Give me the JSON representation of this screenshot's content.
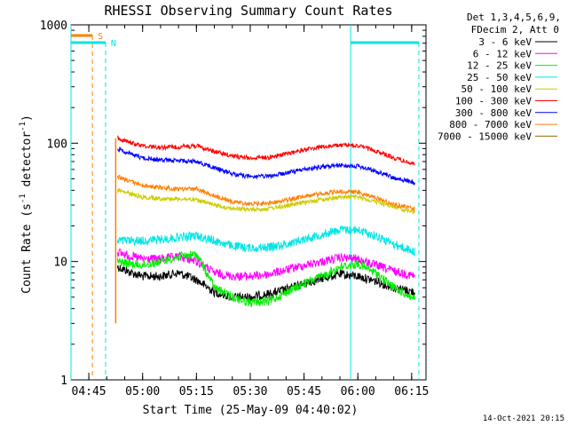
{
  "chart_data": {
    "type": "line",
    "title": "RHESSI Observing Summary Count Rates",
    "xlabel": "Start Time (25-May-09 04:40:02)",
    "ylabel": "Count Rate (s",
    "ylabel_sup": "-1",
    "ylabel_mid": " detector",
    "ylabel_sup2": "-1",
    "ylabel_end": ")",
    "yscale": "log",
    "xlim": [
      "04:40:02",
      "06:19:00"
    ],
    "ylim": [
      1,
      1000
    ],
    "grid": false,
    "legend_position": "right",
    "x_ticks": [
      "04:45",
      "05:00",
      "05:15",
      "05:30",
      "05:45",
      "06:00",
      "06:15"
    ],
    "y_ticks": [
      "1",
      "10",
      "100",
      "1000"
    ],
    "legend_header": [
      "Det 1,3,4,5,6,9,",
      "FDecim 2, Att 0"
    ],
    "timestamp": "14-Oct-2021 20:15",
    "markers": [
      {
        "label": "S",
        "color": "#ff7f00",
        "bar": [
          "04:40:02",
          "04:46:00"
        ],
        "line": "04:46:00"
      },
      {
        "label": "N",
        "color": "#00e5e5",
        "bar": [
          "04:40:02",
          "04:49:40"
        ],
        "line": "04:49:40"
      },
      {
        "label": "",
        "color": "#00e5e5",
        "bar": [
          "05:58:00",
          "06:17:00"
        ],
        "line": "06:17:00"
      }
    ],
    "vlines_solid": [
      "04:40:02",
      "05:58:00"
    ],
    "data_start": "04:52:30",
    "series": [
      {
        "name": "3 - 6 keV",
        "color": "#000000",
        "values": [
          [
            "04:53:00",
            9.0
          ],
          [
            "04:57:00",
            8.0
          ],
          [
            "05:00:00",
            7.5
          ],
          [
            "05:05:00",
            7.5
          ],
          [
            "05:10:00",
            8.0
          ],
          [
            "05:15:00",
            7.0
          ],
          [
            "05:20:00",
            5.5
          ],
          [
            "05:25:00",
            5.0
          ],
          [
            "05:30:00",
            5.0
          ],
          [
            "05:35:00",
            5.3
          ],
          [
            "05:40:00",
            5.8
          ],
          [
            "05:45:00",
            6.5
          ],
          [
            "05:50:00",
            7.2
          ],
          [
            "05:55:00",
            7.8
          ],
          [
            "06:00:00",
            7.5
          ],
          [
            "06:05:00",
            6.8
          ],
          [
            "06:10:00",
            6.0
          ],
          [
            "06:16:00",
            5.5
          ]
        ]
      },
      {
        "name": "6 - 12 keV",
        "color": "#ff00ff",
        "values": [
          [
            "04:53:00",
            12.0
          ],
          [
            "04:57:00",
            11.0
          ],
          [
            "05:00:00",
            10.5
          ],
          [
            "05:05:00",
            10.5
          ],
          [
            "05:10:00",
            11.0
          ],
          [
            "05:15:00",
            10.0
          ],
          [
            "05:20:00",
            8.0
          ],
          [
            "05:25:00",
            7.5
          ],
          [
            "05:30:00",
            7.5
          ],
          [
            "05:35:00",
            7.8
          ],
          [
            "05:40:00",
            8.5
          ],
          [
            "05:45:00",
            9.3
          ],
          [
            "05:50:00",
            10.0
          ],
          [
            "05:55:00",
            10.8
          ],
          [
            "06:00:00",
            10.5
          ],
          [
            "06:05:00",
            9.3
          ],
          [
            "06:10:00",
            8.3
          ],
          [
            "06:16:00",
            7.5
          ]
        ]
      },
      {
        "name": "12 - 25 keV",
        "color": "#00ee00",
        "values": [
          [
            "04:53:00",
            10.0
          ],
          [
            "04:57:00",
            9.5
          ],
          [
            "05:00:00",
            9.3
          ],
          [
            "05:05:00",
            10.0
          ],
          [
            "05:10:00",
            11.0
          ],
          [
            "05:15:00",
            11.5
          ],
          [
            "05:20:00",
            6.0
          ],
          [
            "05:25:00",
            5.0
          ],
          [
            "05:30:00",
            4.5
          ],
          [
            "05:35:00",
            4.6
          ],
          [
            "05:40:00",
            5.5
          ],
          [
            "05:45:00",
            6.5
          ],
          [
            "05:50:00",
            7.5
          ],
          [
            "05:55:00",
            9.0
          ],
          [
            "06:00:00",
            9.5
          ],
          [
            "06:05:00",
            8.0
          ],
          [
            "06:10:00",
            6.0
          ],
          [
            "06:16:00",
            4.8
          ]
        ]
      },
      {
        "name": "25 - 50 keV",
        "color": "#00e5e5",
        "values": [
          [
            "04:53:00",
            15.0
          ],
          [
            "04:57:00",
            15.0
          ],
          [
            "05:00:00",
            15.0
          ],
          [
            "05:05:00",
            15.3
          ],
          [
            "05:10:00",
            16.0
          ],
          [
            "05:15:00",
            16.5
          ],
          [
            "05:20:00",
            15.0
          ],
          [
            "05:25:00",
            13.5
          ],
          [
            "05:30:00",
            13.0
          ],
          [
            "05:35:00",
            13.2
          ],
          [
            "05:40:00",
            14.0
          ],
          [
            "05:45:00",
            15.5
          ],
          [
            "05:50:00",
            17.0
          ],
          [
            "05:55:00",
            18.5
          ],
          [
            "06:00:00",
            18.5
          ],
          [
            "06:05:00",
            16.5
          ],
          [
            "06:10:00",
            14.0
          ],
          [
            "06:16:00",
            12.0
          ]
        ]
      },
      {
        "name": "50 - 100 keV",
        "color": "#cccc00",
        "values": [
          [
            "04:53:00",
            40.0
          ],
          [
            "04:57:00",
            37.0
          ],
          [
            "05:00:00",
            35.0
          ],
          [
            "05:05:00",
            34.0
          ],
          [
            "05:10:00",
            34.0
          ],
          [
            "05:15:00",
            33.0
          ],
          [
            "05:20:00",
            30.0
          ],
          [
            "05:25:00",
            28.0
          ],
          [
            "05:30:00",
            27.5
          ],
          [
            "05:35:00",
            28.0
          ],
          [
            "05:40:00",
            29.5
          ],
          [
            "05:45:00",
            31.5
          ],
          [
            "05:50:00",
            33.5
          ],
          [
            "05:55:00",
            35.0
          ],
          [
            "06:00:00",
            35.0
          ],
          [
            "06:05:00",
            32.0
          ],
          [
            "06:10:00",
            29.0
          ],
          [
            "06:16:00",
            26.0
          ]
        ]
      },
      {
        "name": "100 - 300 keV",
        "color": "#ff0000",
        "values": [
          [
            "04:53:00",
            110.0
          ],
          [
            "04:57:00",
            100.0
          ],
          [
            "05:00:00",
            95.0
          ],
          [
            "05:05:00",
            92.0
          ],
          [
            "05:10:00",
            93.0
          ],
          [
            "05:15:00",
            95.0
          ],
          [
            "05:20:00",
            85.0
          ],
          [
            "05:25:00",
            78.0
          ],
          [
            "05:30:00",
            75.0
          ],
          [
            "05:35:00",
            76.0
          ],
          [
            "05:40:00",
            81.0
          ],
          [
            "05:45:00",
            88.0
          ],
          [
            "05:50:00",
            93.0
          ],
          [
            "05:55:00",
            96.0
          ],
          [
            "06:00:00",
            95.0
          ],
          [
            "06:05:00",
            86.0
          ],
          [
            "06:10:00",
            75.0
          ],
          [
            "06:16:00",
            66.0
          ]
        ]
      },
      {
        "name": "300 - 800 keV",
        "color": "#0000ff",
        "values": [
          [
            "04:53:00",
            90.0
          ],
          [
            "04:57:00",
            80.0
          ],
          [
            "05:00:00",
            75.0
          ],
          [
            "05:05:00",
            72.0
          ],
          [
            "05:10:00",
            71.0
          ],
          [
            "05:15:00",
            70.0
          ],
          [
            "05:20:00",
            62.0
          ],
          [
            "05:25:00",
            55.0
          ],
          [
            "05:30:00",
            52.0
          ],
          [
            "05:35:00",
            52.5
          ],
          [
            "05:40:00",
            56.0
          ],
          [
            "05:45:00",
            60.0
          ],
          [
            "05:50:00",
            63.0
          ],
          [
            "05:55:00",
            65.0
          ],
          [
            "06:00:00",
            64.0
          ],
          [
            "06:05:00",
            58.0
          ],
          [
            "06:10:00",
            51.0
          ],
          [
            "06:16:00",
            46.0
          ]
        ]
      },
      {
        "name": "800 - 7000 keV",
        "color": "#ff7f00",
        "values": [
          [
            "04:53:00",
            52.0
          ],
          [
            "04:57:00",
            47.0
          ],
          [
            "05:00:00",
            44.0
          ],
          [
            "05:05:00",
            42.0
          ],
          [
            "05:10:00",
            41.0
          ],
          [
            "05:15:00",
            41.0
          ],
          [
            "05:20:00",
            36.0
          ],
          [
            "05:25:00",
            32.0
          ],
          [
            "05:30:00",
            30.5
          ],
          [
            "05:35:00",
            31.0
          ],
          [
            "05:40:00",
            33.0
          ],
          [
            "05:45:00",
            35.5
          ],
          [
            "05:50:00",
            37.5
          ],
          [
            "05:55:00",
            39.0
          ],
          [
            "06:00:00",
            38.5
          ],
          [
            "06:05:00",
            34.5
          ],
          [
            "06:10:00",
            30.5
          ],
          [
            "06:16:00",
            27.5
          ]
        ]
      },
      {
        "name": "7000 - 15000 keV",
        "color": "#996600",
        "values": []
      }
    ]
  }
}
